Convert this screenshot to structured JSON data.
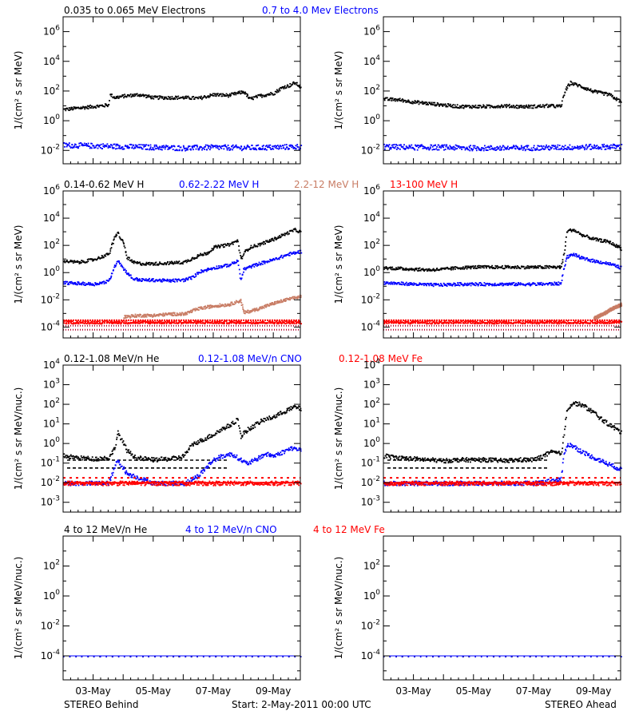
{
  "footer": {
    "left": "STEREO Behind",
    "center": "Start:  2-May-2011 00:00 UTC",
    "right": "STEREO Ahead"
  },
  "x_ticks": [
    "03-May",
    "05-May",
    "07-May",
    "09-May"
  ],
  "colors": {
    "black": "#000000",
    "blue": "#0000ff",
    "tan": "#c87c64",
    "red": "#ff0000"
  },
  "chart_data": [
    {
      "type": "scatter",
      "row": "electrons",
      "legend": [
        {
          "label": "0.035 to 0.065 MeV Electrons",
          "color": "black"
        },
        {
          "label": "0.7 to 4.0 Mev Electrons",
          "color": "blue"
        }
      ],
      "ylabel": "1/(cm² s sr MeV)",
      "ylog": true,
      "ylim_exp": [
        -2.9,
        7.0
      ],
      "yticks_exp": [
        -2,
        0,
        2,
        4,
        6
      ],
      "xlim_days": [
        0,
        7.9
      ],
      "panels": [
        {
          "spacecraft": "STEREO Behind",
          "series": [
            {
              "color": "black",
              "x": [
                0,
                0.5,
                1.0,
                1.5,
                1.55,
                1.7,
                2.0,
                2.5,
                3.0,
                3.5,
                4.0,
                4.5,
                5.0,
                5.5,
                6.0,
                6.2,
                6.5,
                7.0,
                7.3,
                7.5,
                7.7,
                7.9
              ],
              "y": [
                0.8,
                0.9,
                1.0,
                1.1,
                1.8,
                1.6,
                1.7,
                1.8,
                1.6,
                1.6,
                1.6,
                1.55,
                1.8,
                1.75,
                2.0,
                1.5,
                1.7,
                1.9,
                2.3,
                2.4,
                2.6,
                2.3
              ]
            },
            {
              "color": "blue",
              "x": [
                0,
                1,
                2,
                3,
                4,
                5,
                6,
                7,
                7.9
              ],
              "y": [
                -1.6,
                -1.65,
                -1.7,
                -1.75,
                -1.8,
                -1.75,
                -1.78,
                -1.75,
                -1.7
              ]
            }
          ]
        },
        {
          "spacecraft": "STEREO Ahead",
          "series": [
            {
              "color": "black",
              "x": [
                0,
                0.5,
                1.0,
                1.5,
                2.0,
                2.5,
                3.0,
                3.5,
                4.0,
                4.5,
                5.0,
                5.5,
                5.9,
                6.0,
                6.2,
                6.5,
                7.0,
                7.5,
                7.9
              ],
              "y": [
                1.5,
                1.45,
                1.3,
                1.2,
                1.1,
                1.0,
                1.0,
                1.0,
                1.05,
                1.0,
                1.0,
                1.05,
                1.0,
                1.9,
                2.6,
                2.4,
                2.0,
                1.8,
                1.3
              ]
            },
            {
              "color": "blue",
              "x": [
                0,
                1,
                2,
                3,
                4,
                5,
                6,
                7,
                7.9
              ],
              "y": [
                -1.7,
                -1.75,
                -1.75,
                -1.8,
                -1.8,
                -1.78,
                -1.75,
                -1.72,
                -1.7
              ]
            }
          ]
        }
      ]
    },
    {
      "type": "scatter",
      "row": "protons",
      "legend": [
        {
          "label": "0.14-0.62 MeV H",
          "color": "black"
        },
        {
          "label": "0.62-2.22 MeV H",
          "color": "blue"
        },
        {
          "label": "2.2-12 MeV H",
          "color": "tan"
        },
        {
          "label": "13-100 MeV H",
          "color": "red"
        }
      ],
      "ylabel": "1/(cm² s sr MeV)",
      "ylog": true,
      "ylim_exp": [
        -4.8,
        6.0
      ],
      "yticks_exp": [
        -4,
        -2,
        0,
        2,
        4,
        6
      ],
      "xlim_days": [
        0,
        7.9
      ],
      "panels": [
        {
          "spacecraft": "STEREO Behind",
          "series": [
            {
              "color": "black",
              "x": [
                0,
                0.5,
                1.0,
                1.5,
                1.7,
                1.8,
                1.9,
                2.0,
                2.1,
                2.3,
                2.6,
                3.0,
                3.5,
                4.0,
                4.3,
                4.5,
                4.8,
                5.0,
                5.5,
                5.8,
                5.9,
                6.0,
                6.2,
                6.5,
                7.0,
                7.3,
                7.7,
                7.9
              ],
              "y": [
                0.9,
                0.8,
                1.0,
                1.4,
                2.6,
                3.0,
                2.5,
                2.2,
                1.2,
                0.8,
                0.7,
                0.7,
                0.75,
                0.8,
                1.1,
                1.3,
                1.5,
                1.9,
                2.1,
                2.4,
                1.0,
                1.5,
                1.9,
                2.1,
                2.5,
                2.8,
                3.2,
                3.0
              ]
            },
            {
              "color": "blue",
              "x": [
                0,
                0.5,
                1.0,
                1.5,
                1.7,
                1.8,
                2.0,
                2.3,
                2.6,
                3.0,
                3.5,
                4.0,
                4.3,
                4.5,
                5.0,
                5.5,
                5.8,
                5.9,
                6.0,
                6.5,
                7.0,
                7.5,
                7.9
              ],
              "y": [
                -0.7,
                -0.75,
                -0.8,
                -0.6,
                0.5,
                1.0,
                0.3,
                -0.4,
                -0.5,
                -0.5,
                -0.55,
                -0.5,
                -0.3,
                0.1,
                0.4,
                0.6,
                0.9,
                -0.5,
                0.3,
                0.7,
                1.0,
                1.4,
                1.6
              ]
            },
            {
              "color": "tan",
              "x": [
                2.0,
                2.5,
                3.0,
                3.5,
                4.0,
                4.5,
                5.0,
                5.5,
                5.9,
                6.0,
                6.5,
                7.0,
                7.5,
                7.9
              ],
              "y": [
                -3.2,
                -3.1,
                -3.1,
                -3.0,
                -3.0,
                -2.6,
                -2.4,
                -2.3,
                -2.0,
                -2.9,
                -2.6,
                -2.2,
                -1.9,
                -1.7
              ]
            },
            {
              "color": "red",
              "x": [
                0,
                2,
                4,
                6,
                7.9
              ],
              "y": [
                -3.6,
                -3.6,
                -3.6,
                -3.6,
                -3.6
              ]
            }
          ]
        },
        {
          "spacecraft": "STEREO Ahead",
          "series": [
            {
              "color": "black",
              "x": [
                0,
                0.5,
                1.0,
                1.5,
                2.0,
                2.5,
                3.0,
                3.5,
                4.0,
                4.5,
                5.0,
                5.5,
                5.9,
                6.0,
                6.1,
                6.3,
                6.6,
                7.0,
                7.5,
                7.9
              ],
              "y": [
                0.4,
                0.35,
                0.3,
                0.25,
                0.3,
                0.4,
                0.45,
                0.45,
                0.45,
                0.45,
                0.45,
                0.45,
                0.45,
                1.5,
                3.1,
                3.2,
                2.8,
                2.5,
                2.3,
                1.8
              ]
            },
            {
              "color": "blue",
              "x": [
                0,
                0.5,
                1.0,
                1.5,
                2.0,
                2.5,
                3.0,
                3.5,
                4.0,
                4.5,
                5.0,
                5.5,
                5.9,
                6.0,
                6.1,
                6.3,
                6.6,
                7.0,
                7.5,
                7.9
              ],
              "y": [
                -0.7,
                -0.75,
                -0.8,
                -0.85,
                -0.85,
                -0.8,
                -0.8,
                -0.8,
                -0.8,
                -0.8,
                -0.8,
                -0.78,
                -0.75,
                0.5,
                1.2,
                1.4,
                1.1,
                0.9,
                0.7,
                0.4
              ]
            },
            {
              "color": "tan",
              "x": [
                7.0,
                7.3,
                7.6,
                7.9
              ],
              "y": [
                -3.3,
                -3.0,
                -2.6,
                -2.3
              ]
            },
            {
              "color": "red",
              "x": [
                0,
                2,
                4,
                6,
                7.9
              ],
              "y": [
                -3.6,
                -3.6,
                -3.6,
                -3.6,
                -3.6
              ]
            }
          ]
        }
      ]
    },
    {
      "type": "scatter",
      "row": "heavy-low",
      "legend": [
        {
          "label": "0.12-1.08 MeV/n He",
          "color": "black"
        },
        {
          "label": "0.12-1.08 MeV/n CNO",
          "color": "blue"
        },
        {
          "label": "0.12-1.08 MeV Fe",
          "color": "red"
        }
      ],
      "ylabel": "1/(cm² s sr MeV/nuc.)",
      "ylog": true,
      "ylim_exp": [
        -3.5,
        4.0
      ],
      "yticks_exp": [
        -3,
        -2,
        -1,
        0,
        1,
        2,
        3,
        4
      ],
      "xlim_days": [
        0,
        7.9
      ],
      "panels": [
        {
          "spacecraft": "STEREO Behind",
          "series": [
            {
              "color": "black",
              "x": [
                0,
                0.5,
                1.0,
                1.5,
                1.7,
                1.8,
                1.9,
                2.1,
                2.4,
                3.0,
                3.5,
                3.8,
                4.0,
                4.3,
                4.6,
                5.0,
                5.3,
                5.6,
                5.8,
                5.9,
                6.0,
                6.3,
                6.6,
                7.0,
                7.4,
                7.7,
                7.9
              ],
              "y": [
                -0.6,
                -0.7,
                -0.75,
                -0.7,
                -0.2,
                0.6,
                0.3,
                -0.3,
                -0.7,
                -0.8,
                -0.75,
                -0.7,
                -0.6,
                0.0,
                0.2,
                0.5,
                0.8,
                1.0,
                1.3,
                0.3,
                0.6,
                0.9,
                1.2,
                1.4,
                1.7,
                1.9,
                1.8
              ]
            },
            {
              "color": "blue",
              "x": [
                0,
                1.5,
                1.8,
                2.1,
                3.0,
                4.0,
                4.5,
                4.8,
                5.0,
                5.3,
                5.6,
                5.9,
                6.1,
                6.4,
                6.7,
                7.0,
                7.3,
                7.6,
                7.9
              ],
              "y": [
                -2.0,
                -2.0,
                -0.8,
                -1.5,
                -2.0,
                -2.0,
                -1.6,
                -1.1,
                -0.8,
                -0.6,
                -0.5,
                -0.8,
                -1.0,
                -0.8,
                -0.5,
                -0.6,
                -0.4,
                -0.2,
                -0.3
              ]
            },
            {
              "color": "red",
              "x": [
                0,
                2,
                4,
                6,
                7.9
              ],
              "y": [
                -2.0,
                -2.0,
                -2.0,
                -2.0,
                -2.0
              ]
            }
          ]
        },
        {
          "spacecraft": "STEREO Ahead",
          "series": [
            {
              "color": "black",
              "x": [
                0,
                0.5,
                1.0,
                1.5,
                2.0,
                2.5,
                3.0,
                3.5,
                4.0,
                4.5,
                5.0,
                5.3,
                5.6,
                5.9,
                6.0,
                6.1,
                6.3,
                6.6,
                7.0,
                7.3,
                7.6,
                7.9
              ],
              "y": [
                -0.6,
                -0.7,
                -0.75,
                -0.8,
                -0.85,
                -0.8,
                -0.8,
                -0.8,
                -0.85,
                -0.8,
                -0.8,
                -0.6,
                -0.4,
                -0.5,
                0.5,
                1.8,
                2.1,
                2.0,
                1.6,
                1.2,
                0.9,
                0.6
              ]
            },
            {
              "color": "blue",
              "x": [
                0,
                1,
                2,
                3,
                4,
                5,
                5.9,
                6.0,
                6.1,
                6.3,
                6.6,
                7.0,
                7.3,
                7.6,
                7.9
              ],
              "y": [
                -2.0,
                -2.0,
                -2.0,
                -2.0,
                -2.0,
                -2.0,
                -1.8,
                -0.5,
                0.0,
                -0.1,
                -0.4,
                -0.7,
                -0.9,
                -1.1,
                -1.3
              ]
            },
            {
              "color": "red",
              "x": [
                0,
                2,
                4,
                6,
                7.9
              ],
              "y": [
                -2.0,
                -2.0,
                -2.0,
                -2.0,
                -2.0
              ]
            }
          ]
        }
      ]
    },
    {
      "type": "scatter",
      "row": "heavy-high",
      "legend": [
        {
          "label": "4 to 12 MeV/n He",
          "color": "black"
        },
        {
          "label": "4 to 12 MeV/n CNO",
          "color": "blue"
        },
        {
          "label": "4 to 12 MeV Fe",
          "color": "red"
        }
      ],
      "ylabel": "1/(cm² s sr MeV/nuc.)",
      "ylog": true,
      "ylim_exp": [
        -5.6,
        4.0
      ],
      "yticks_exp": [
        -4,
        -2,
        0,
        2
      ],
      "xlim_days": [
        0,
        7.9
      ],
      "panels": [
        {
          "spacecraft": "STEREO Behind",
          "series": [
            {
              "color": "black",
              "x": [
                0,
                7.9
              ],
              "y": [
                -4.0,
                -4.0
              ]
            },
            {
              "color": "blue",
              "x": [
                0,
                7.9
              ],
              "y": [
                -4.0,
                -4.0
              ]
            }
          ]
        },
        {
          "spacecraft": "STEREO Ahead",
          "series": [
            {
              "color": "black",
              "x": [
                0,
                7.9
              ],
              "y": [
                -4.0,
                -4.0
              ]
            },
            {
              "color": "blue",
              "x": [
                0,
                7.9
              ],
              "y": [
                -4.0,
                -4.0
              ]
            }
          ]
        }
      ]
    }
  ]
}
